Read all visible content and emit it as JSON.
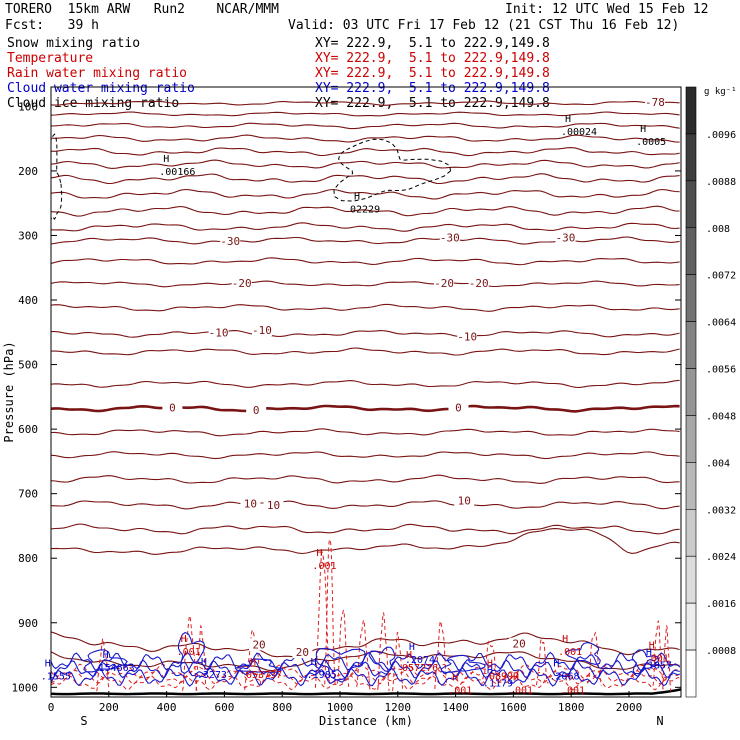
{
  "header": {
    "model": "TORERO  15km ARW   Run2    NCAR/MMM",
    "init": "Init: 12 UTC Wed 15 Feb 12",
    "fcst": "Fcst:   39 h",
    "valid": "Valid: 03 UTC Fri 17 Feb 12 (21 CST Thu 16 Feb 12)"
  },
  "fields": [
    {
      "name": "Snow mixing ratio",
      "xy": "XY= 222.9,  5.1 to 222.9,149.8",
      "color": "#000000"
    },
    {
      "name": "Temperature",
      "xy": "XY= 222.9,  5.1 to 222.9,149.8",
      "color": "#cc0000"
    },
    {
      "name": "Rain water mixing ratio",
      "xy": "XY= 222.9,  5.1 to 222.9,149.8",
      "color": "#cc0000"
    },
    {
      "name": "Cloud water mixing ratio",
      "xy": "XY= 222.9,  5.1 to 222.9,149.8",
      "color": "#0000cc"
    },
    {
      "name": "Cloud ice mixing ratio",
      "xy": "XY= 222.9,  5.1 to 222.9,149.8",
      "color": "#000000"
    }
  ],
  "chart_data": {
    "type": "contour",
    "xlabel": "Distance (km)",
    "ylabel": "Pressure (hPa)",
    "xlim": [
      0,
      2180
    ],
    "ylim": [
      1015,
      70
    ],
    "x_ticks": [
      0,
      200,
      400,
      600,
      800,
      1000,
      1200,
      1400,
      1600,
      1800,
      2000
    ],
    "y_ticks": [
      200,
      300,
      400,
      500,
      600,
      700,
      800,
      900,
      1000
    ],
    "y_top_label": "100",
    "x_left_label": "S",
    "x_right_label": "N",
    "colorbar": {
      "unit": "g kg⁻¹",
      "ticks": [
        ".0096",
        ".0088",
        ".008",
        ".0072",
        ".0064",
        ".0056",
        ".0048",
        ".004",
        ".0032",
        ".0024",
        ".0016",
        ".0008"
      ],
      "top_color": "#2b2b2b",
      "bottom_color": "#ffffff"
    },
    "temperature_isotherms_c": [
      -78,
      -70,
      -60,
      -50,
      -40,
      -30,
      -20,
      -10,
      0,
      10,
      20
    ],
    "temperature_labels": [
      {
        "text": "-78",
        "x": 2090,
        "p": 95
      },
      {
        "text": "-30",
        "x": 620,
        "p": 310
      },
      {
        "text": "-30",
        "x": 1380,
        "p": 305
      },
      {
        "text": "-30",
        "x": 1780,
        "p": 305
      },
      {
        "text": "-20",
        "x": 660,
        "p": 375
      },
      {
        "text": "-20",
        "x": 1360,
        "p": 375
      },
      {
        "text": "-20",
        "x": 1480,
        "p": 375
      },
      {
        "text": "-10",
        "x": 580,
        "p": 452
      },
      {
        "text": "-10",
        "x": 730,
        "p": 448
      },
      {
        "text": "-10",
        "x": 1440,
        "p": 458
      },
      {
        "text": "0",
        "x": 420,
        "p": 568
      },
      {
        "text": "0",
        "x": 710,
        "p": 572
      },
      {
        "text": "0",
        "x": 1410,
        "p": 568
      },
      {
        "text": "10",
        "x": 690,
        "p": 717
      },
      {
        "text": "10",
        "x": 770,
        "p": 719
      },
      {
        "text": "10",
        "x": 1430,
        "p": 712
      },
      {
        "text": "20",
        "x": 720,
        "p": 935
      },
      {
        "text": "20",
        "x": 870,
        "p": 947
      },
      {
        "text": "20",
        "x": 1620,
        "p": 934
      }
    ],
    "maxima_labels": [
      {
        "text": ".00024",
        "x": 1820,
        "p": 140,
        "color": "#000000"
      },
      {
        "text": ".0005",
        "x": 2080,
        "p": 155,
        "color": "#000000"
      },
      {
        "text": ".00166",
        "x": 430,
        "p": 202,
        "color": "#000000"
      },
      {
        "text": "02229",
        "x": 1090,
        "p": 260,
        "color": "#000000"
      },
      {
        "text": ".001",
        "x": 960,
        "p": 812,
        "color": "#cc0000"
      },
      {
        "text": ".001",
        "x": 490,
        "p": 945,
        "color": "#cc0000"
      },
      {
        "text": ".001",
        "x": 1810,
        "p": 945,
        "color": "#cc0000"
      },
      {
        "text": ".001",
        "x": 2110,
        "p": 955,
        "color": "#cc0000"
      },
      {
        "text": ".001",
        "x": 1430,
        "p": 1005,
        "color": "#cc0000"
      },
      {
        "text": ".001",
        "x": 1640,
        "p": 1005,
        "color": "#cc0000"
      },
      {
        "text": ".001",
        "x": 1820,
        "p": 1005,
        "color": "#cc0000"
      },
      {
        "text": "154663",
        "x": 220,
        "p": 970,
        "color": "#0000cc"
      },
      {
        "text": ".1555",
        "x": 20,
        "p": 983,
        "color": "#0000cc"
      },
      {
        "text": ".3273",
        "x": 560,
        "p": 981,
        "color": "#0000cc"
      },
      {
        "text": "053737",
        "x": 730,
        "p": 981,
        "color": "#cc0000"
      },
      {
        "text": ".1985",
        "x": 940,
        "p": 981,
        "color": "#0000cc"
      },
      {
        "text": ".2074",
        "x": 1280,
        "p": 958,
        "color": "#0000cc"
      },
      {
        "text": "057276",
        "x": 1270,
        "p": 970,
        "color": "#cc0000"
      },
      {
        "text": ".08997",
        "x": 1550,
        "p": 983,
        "color": "#cc0000"
      },
      {
        "text": ".1179",
        "x": 1550,
        "p": 994,
        "color": "#0000cc"
      },
      {
        "text": ".2668",
        "x": 1780,
        "p": 983,
        "color": "#0000cc"
      },
      {
        "text": ".1857",
        "x": 2100,
        "p": 966,
        "color": "#0000cc"
      }
    ]
  }
}
